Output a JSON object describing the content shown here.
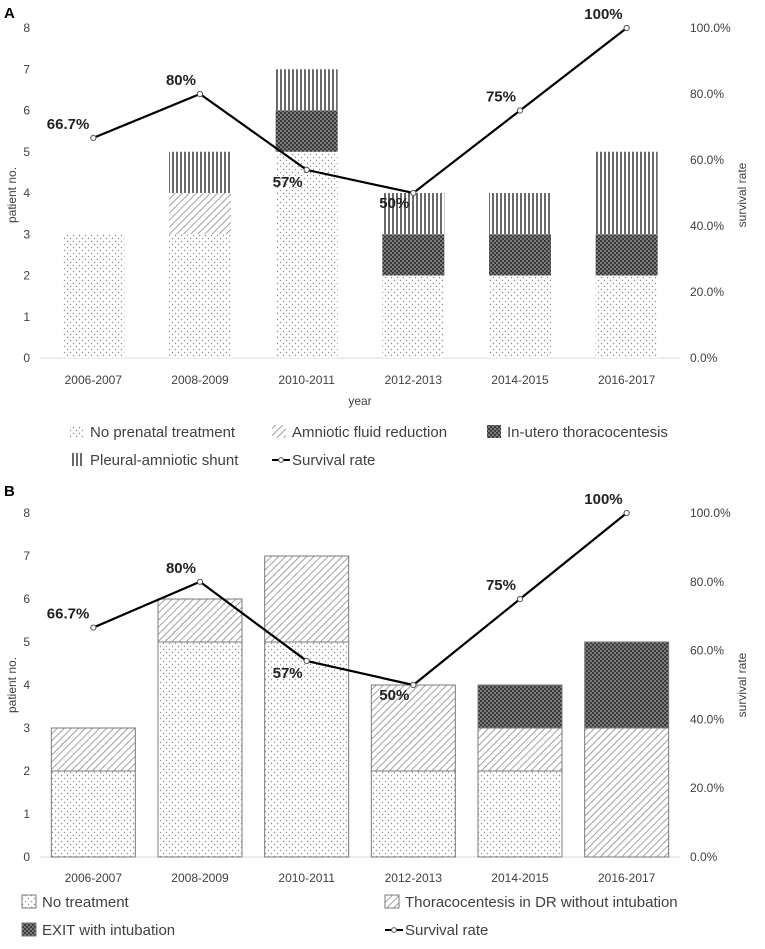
{
  "chart_data": [
    {
      "type": "bar",
      "panel_label": "A",
      "stacked": true,
      "categories": [
        "2006-2007",
        "2008-2009",
        "2010-2011",
        "2012-2013",
        "2014-2015",
        "2016-2017"
      ],
      "series": [
        {
          "name": "No prenatal treatment",
          "pattern": "dots",
          "values": [
            3,
            3,
            5,
            2,
            2,
            2
          ]
        },
        {
          "name": "Amniotic fluid reduction",
          "pattern": "diag",
          "values": [
            0,
            1,
            0,
            0,
            0,
            0
          ]
        },
        {
          "name": "In-utero thoracocentesis",
          "pattern": "cross",
          "values": [
            0,
            0,
            1,
            1,
            1,
            1
          ]
        },
        {
          "name": "Pleural-amniotic shunt",
          "pattern": "vert",
          "values": [
            0,
            1,
            1,
            1,
            1,
            2
          ]
        }
      ],
      "line_series": {
        "name": "Survival rate",
        "values": [
          66.7,
          80,
          57,
          50,
          75,
          100
        ],
        "labels": [
          "66.7%",
          "80%",
          "57%",
          "50%",
          "75%",
          "100%"
        ]
      },
      "xlabel": "year",
      "ylabel": "patient no.",
      "y2label": "survival rate",
      "ylim": [
        0,
        8
      ],
      "y2lim": [
        0,
        100
      ],
      "yticks": [
        "0",
        "1",
        "2",
        "3",
        "4",
        "5",
        "6",
        "7",
        "8"
      ],
      "y2ticks": [
        "0.0%",
        "20.0%",
        "40.0%",
        "60.0%",
        "80.0%",
        "100.0%"
      ],
      "legend": [
        {
          "label": "No prenatal treatment",
          "kind": "dots"
        },
        {
          "label": "Amniotic fluid reduction",
          "kind": "diag"
        },
        {
          "label": "In-utero thoracocentesis",
          "kind": "cross"
        },
        {
          "label": "Pleural-amniotic shunt",
          "kind": "vert"
        },
        {
          "label": "Survival rate",
          "kind": "line"
        }
      ],
      "grid": false
    },
    {
      "type": "bar",
      "panel_label": "B",
      "stacked": true,
      "categories": [
        "2006-2007",
        "2008-2009",
        "2010-2011",
        "2012-2013",
        "2014-2015",
        "2016-2017"
      ],
      "series": [
        {
          "name": "No treatment",
          "pattern": "dots",
          "values": [
            2,
            5,
            5,
            2,
            2,
            0
          ]
        },
        {
          "name": "Thoracocentesis in DR without intubation",
          "pattern": "diag",
          "values": [
            1,
            1,
            2,
            2,
            1,
            3
          ]
        },
        {
          "name": "EXIT with intubation",
          "pattern": "cross",
          "values": [
            0,
            0,
            0,
            0,
            1,
            2
          ]
        }
      ],
      "line_series": {
        "name": "Survival rate",
        "values": [
          66.7,
          80,
          57,
          50,
          75,
          100
        ],
        "labels": [
          "66.7%",
          "80%",
          "57%",
          "50%",
          "75%",
          "100%"
        ]
      },
      "xlabel": "",
      "ylabel": "patient no.",
      "y2label": "survival rate",
      "ylim": [
        0,
        8
      ],
      "y2lim": [
        0,
        100
      ],
      "yticks": [
        "0",
        "1",
        "2",
        "3",
        "4",
        "5",
        "6",
        "7",
        "8"
      ],
      "y2ticks": [
        "0.0%",
        "20.0%",
        "40.0%",
        "60.0%",
        "80.0%",
        "100.0%"
      ],
      "legend": [
        {
          "label": "No treatment",
          "kind": "dots"
        },
        {
          "label": "Thoracocentesis in DR without intubation",
          "kind": "diag"
        },
        {
          "label": "EXIT with intubation",
          "kind": "cross"
        },
        {
          "label": "Survival rate",
          "kind": "line"
        }
      ],
      "grid": false
    }
  ]
}
